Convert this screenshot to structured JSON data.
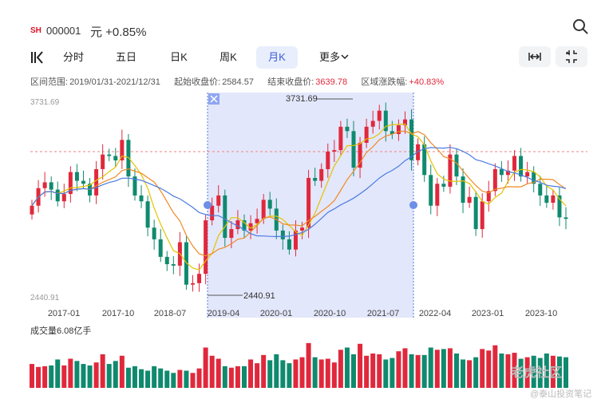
{
  "header": {
    "market_badge": "SH",
    "code": "000001",
    "price_change": "元 +0.85%"
  },
  "tabs": [
    {
      "label": "分时"
    },
    {
      "label": "五日"
    },
    {
      "label": "日K"
    },
    {
      "label": "周K"
    },
    {
      "label": "月K"
    },
    {
      "label": "更多"
    }
  ],
  "active_tab": "月K",
  "info": {
    "range_label": "区间范围:",
    "range": "2019/01/31-2021/12/31",
    "start_label": "起始收盘价:",
    "start": "2584.57",
    "end_label": "结束收盘价:",
    "end": "3639.78",
    "change_label": "区域涨跌幅:",
    "change": "+40.83%"
  },
  "colors": {
    "up": "#e0283c",
    "down": "#0f8a6e",
    "ma5": "#e3c200",
    "ma10": "#f08a24",
    "ma20": "#4a7be0",
    "selection": "#e3e7fb"
  },
  "chart_data": {
    "type": "candlestick",
    "price_max_label": "3731.69",
    "price_min_label": "2440.91",
    "ylim": [
      2440.91,
      3731.69
    ],
    "dashed_reference": 3450,
    "x_ticks": [
      "2017-01",
      "2017-10",
      "2018-07",
      "2019-04",
      "2020-01",
      "2020-10",
      "2021-07",
      "2022-04",
      "2023-01",
      "2023-10"
    ],
    "selection": {
      "start": "2019/01/31",
      "end": "2021/12/31",
      "high_label": "3731.69",
      "low_label": "2440.91"
    },
    "volume_label": "成交量6.08亿手",
    "closes": [
      3050,
      3170,
      3210,
      3160,
      3080,
      3130,
      3280,
      3220,
      3200,
      3120,
      3300,
      3400,
      3390,
      3360,
      3500,
      3250,
      3120,
      3080,
      2900,
      2820,
      2700,
      2650,
      2640,
      2800,
      2510,
      2520,
      2584,
      2950,
      3050,
      3120,
      2830,
      2890,
      2950,
      2880,
      2930,
      2960,
      3090,
      3030,
      2880,
      2820,
      2750,
      2880,
      2900,
      3240,
      3220,
      3300,
      3420,
      3430,
      3590,
      3560,
      3310,
      3480,
      3590,
      3630,
      3700,
      3560,
      3540,
      3600,
      3640,
      3361,
      3470,
      3260,
      3050,
      3200,
      3180,
      3400,
      3250,
      3070,
      3110,
      2890,
      3080,
      3150,
      3300,
      3260,
      3290,
      3390,
      3250,
      3280,
      3200,
      3120,
      3070,
      3120,
      2970,
      2960
    ]
  },
  "volume": [
    3.2,
    2.8,
    2.9,
    3.0,
    3.8,
    3.0,
    3.9,
    3.6,
    3.2,
    3.0,
    3.4,
    4.5,
    3.2,
    3.6,
    4.3,
    2.7,
    2.9,
    2.5,
    2.3,
    2.9,
    2.6,
    2.3,
    2.0,
    2.4,
    2.3,
    2.0,
    2.6,
    5.4,
    4.3,
    3.9,
    2.9,
    2.7,
    2.9,
    2.9,
    3.8,
    3.3,
    4.4,
    3.7,
    4.5,
    3.7,
    3.3,
    3.8,
    4.1,
    6.0,
    4.1,
    3.8,
    3.9,
    3.4,
    5.1,
    5.4,
    4.5,
    5.9,
    4.3,
    4.6,
    4.5,
    3.8,
    4.0,
    4.9,
    5.3,
    4.5,
    4.4,
    4.4,
    5.4,
    5.1,
    5.2,
    5.3,
    4.6,
    3.8,
    3.7,
    4.1,
    5.2,
    5.0,
    5.7,
    4.6,
    4.5,
    4.7,
    3.9,
    4.1,
    4.3,
    4.0,
    4.6,
    4.3,
    4.2,
    4.1
  ],
  "watermark": {
    "line1": "老虎社区",
    "line2": "@泰山投资笔记"
  }
}
